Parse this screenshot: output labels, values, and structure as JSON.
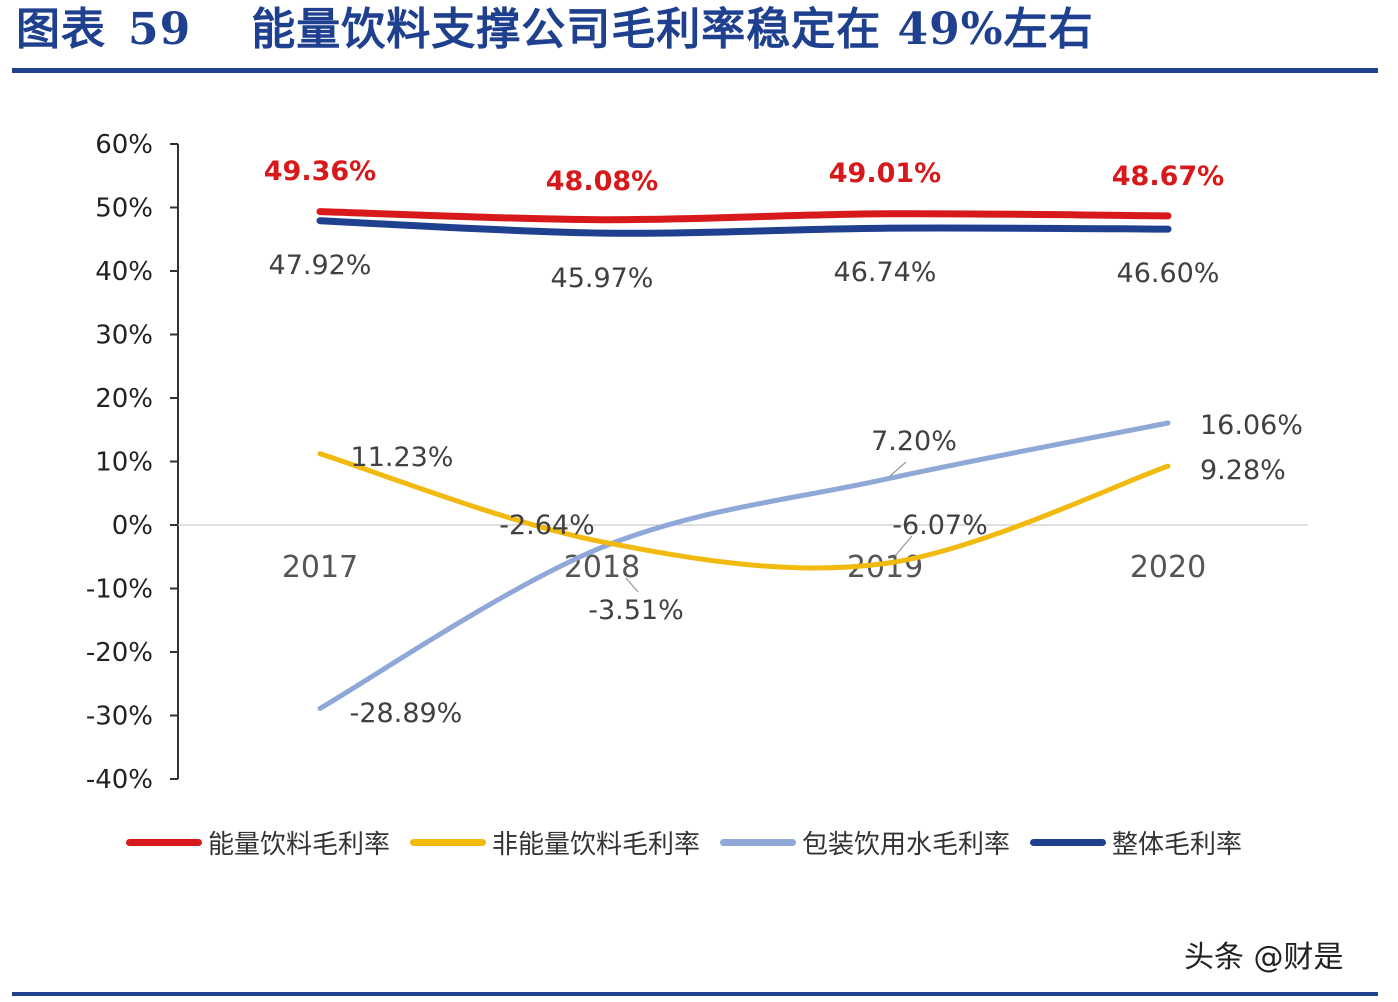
{
  "title": {
    "prefix": "图表",
    "number": "59",
    "text": "能量饮料支撑公司毛利率稳定在 49%左右"
  },
  "watermark": "头条 @财是",
  "chart_data": {
    "type": "line",
    "categories": [
      "2017",
      "2018",
      "2019",
      "2020"
    ],
    "ylim": [
      -40,
      60
    ],
    "yticks": [
      "60%",
      "50%",
      "40%",
      "30%",
      "20%",
      "10%",
      "0%",
      "-10%",
      "-20%",
      "-30%",
      "-40%"
    ],
    "grid": false,
    "legend_position": "bottom",
    "series": [
      {
        "name": "能量饮料毛利率",
        "color": "#d7191c",
        "values": [
          49.36,
          48.08,
          49.01,
          48.67
        ],
        "labels": [
          "49.36%",
          "48.08%",
          "49.01%",
          "48.67%"
        ],
        "label_color": "#d7191c"
      },
      {
        "name": "非能量饮料毛利率",
        "color": "#f2b90f",
        "values": [
          11.23,
          -2.64,
          -6.07,
          9.28
        ],
        "labels": [
          "11.23%",
          "-2.64%",
          "-6.07%",
          "9.28%"
        ],
        "label_color": "#404040"
      },
      {
        "name": "包装饮用水毛利率",
        "color": "#8fa8d8",
        "values": [
          -28.89,
          -3.51,
          7.2,
          16.06
        ],
        "labels": [
          "-28.89%",
          "-3.51%",
          "7.20%",
          "16.06%"
        ],
        "label_color": "#404040"
      },
      {
        "name": "整体毛利率",
        "color": "#1f3f8f",
        "values": [
          47.92,
          45.97,
          46.74,
          46.6
        ],
        "labels": [
          "47.92%",
          "45.97%",
          "46.74%",
          "46.60%"
        ],
        "label_color": "#404040"
      }
    ]
  }
}
